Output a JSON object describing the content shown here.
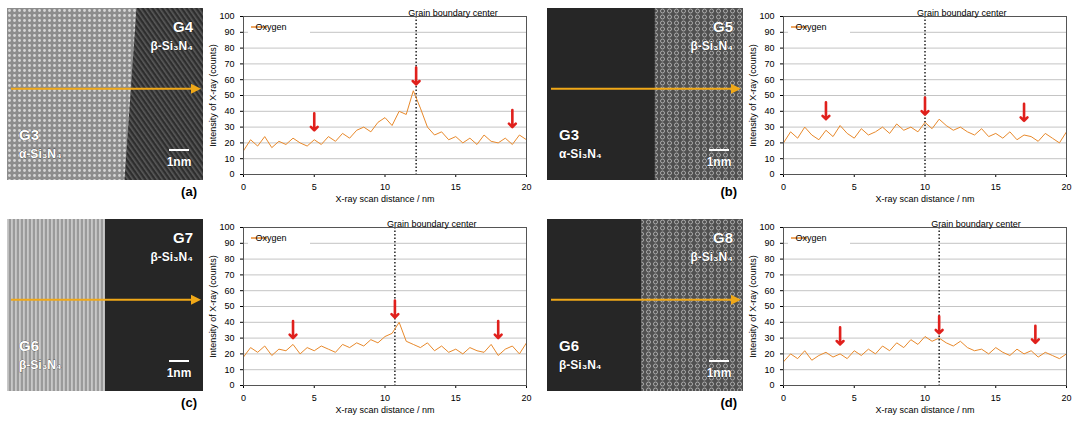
{
  "chart_data": [
    {
      "panel": "(a)",
      "type": "line",
      "image": {
        "left_grain": "G3",
        "left_phase": "α-Si₃N₄",
        "right_grain": "G4",
        "right_phase": "β-Si₃N₄",
        "scale_bar": "1nm"
      },
      "x_label": "X-ray scan distance / nm",
      "y_label": "Intensity of X-ray (counts)",
      "xlim": [
        0,
        20
      ],
      "xticks": [
        0,
        5,
        10,
        15,
        20
      ],
      "ylim": [
        0,
        100
      ],
      "yticks": [
        0,
        10,
        20,
        30,
        40,
        50,
        60,
        70,
        80,
        90,
        100
      ],
      "grid": true,
      "legend": "top-left",
      "boundary_center": 12.2,
      "boundary_label": "Grain boundary center",
      "arrows": [
        {
          "x": 5,
          "y": 28
        },
        {
          "x": 12.2,
          "y": 57
        },
        {
          "x": 19,
          "y": 30
        }
      ],
      "x": [
        0,
        0.5,
        1,
        1.5,
        2,
        2.5,
        3,
        3.5,
        4,
        4.5,
        5,
        5.5,
        6,
        6.5,
        7,
        7.5,
        8,
        8.5,
        9,
        9.5,
        10,
        10.5,
        11,
        11.5,
        12,
        12.5,
        13,
        13.5,
        14,
        14.5,
        15,
        15.5,
        16,
        16.5,
        17,
        17.5,
        18,
        18.5,
        19,
        19.5,
        20
      ],
      "series": [
        {
          "name": "Oxygen",
          "color": "#e8892b",
          "values": [
            15,
            22,
            18,
            24,
            17,
            21,
            19,
            23,
            20,
            18,
            22,
            19,
            24,
            21,
            26,
            23,
            28,
            30,
            27,
            33,
            36,
            31,
            40,
            38,
            53,
            42,
            30,
            25,
            27,
            22,
            24,
            20,
            23,
            19,
            25,
            21,
            20,
            23,
            19,
            25,
            22
          ]
        }
      ]
    },
    {
      "panel": "(b)",
      "type": "line",
      "image": {
        "left_grain": "G3",
        "left_phase": "α-Si₃N₄",
        "right_grain": "G5",
        "right_phase": "β-Si₃N₄",
        "scale_bar": "1nm"
      },
      "x_label": "X-ray scan distance / nm",
      "y_label": "Intensity of X-ray (counts)",
      "xlim": [
        0,
        20
      ],
      "xticks": [
        0,
        5,
        10,
        15,
        20
      ],
      "ylim": [
        0,
        100
      ],
      "yticks": [
        0,
        10,
        20,
        30,
        40,
        50,
        60,
        70,
        80,
        90,
        100
      ],
      "grid": true,
      "legend": "top-left",
      "boundary_center": 10,
      "boundary_label": "Grain boundary center",
      "arrows": [
        {
          "x": 3,
          "y": 35
        },
        {
          "x": 10,
          "y": 38
        },
        {
          "x": 17,
          "y": 34
        }
      ],
      "x": [
        0,
        0.5,
        1,
        1.5,
        2,
        2.5,
        3,
        3.5,
        4,
        4.5,
        5,
        5.5,
        6,
        6.5,
        7,
        7.5,
        8,
        8.5,
        9,
        9.5,
        10,
        10.5,
        11,
        11.5,
        12,
        12.5,
        13,
        13.5,
        14,
        14.5,
        15,
        15.5,
        16,
        16.5,
        17,
        17.5,
        18,
        18.5,
        19,
        19.5,
        20
      ],
      "series": [
        {
          "name": "Oxygen",
          "color": "#e8892b",
          "values": [
            20,
            27,
            23,
            30,
            25,
            22,
            28,
            24,
            31,
            26,
            23,
            29,
            25,
            27,
            30,
            26,
            32,
            28,
            30,
            27,
            33,
            29,
            35,
            31,
            28,
            30,
            27,
            25,
            29,
            24,
            26,
            23,
            27,
            22,
            25,
            24,
            21,
            26,
            23,
            20,
            27
          ]
        }
      ]
    },
    {
      "panel": "(c)",
      "type": "line",
      "image": {
        "left_grain": "G6",
        "left_phase": "β-Si₃N₄",
        "right_grain": "G7",
        "right_phase": "β-Si₃N₄",
        "scale_bar": "1nm"
      },
      "x_label": "X-ray scan distance / nm",
      "y_label": "Intensity of X-ray (counts)",
      "xlim": [
        0,
        20
      ],
      "xticks": [
        0,
        5,
        10,
        15,
        20
      ],
      "ylim": [
        0,
        100
      ],
      "yticks": [
        0,
        10,
        20,
        30,
        40,
        50,
        60,
        70,
        80,
        90,
        100
      ],
      "grid": true,
      "legend": "top-left",
      "boundary_center": 10.7,
      "boundary_label": "Grain boundary center",
      "arrows": [
        {
          "x": 3.5,
          "y": 30
        },
        {
          "x": 10.7,
          "y": 43
        },
        {
          "x": 18,
          "y": 30
        }
      ],
      "x": [
        0,
        0.5,
        1,
        1.5,
        2,
        2.5,
        3,
        3.5,
        4,
        4.5,
        5,
        5.5,
        6,
        6.5,
        7,
        7.5,
        8,
        8.5,
        9,
        9.5,
        10,
        10.5,
        11,
        11.5,
        12,
        12.5,
        13,
        13.5,
        14,
        14.5,
        15,
        15.5,
        16,
        16.5,
        17,
        17.5,
        18,
        18.5,
        19,
        19.5,
        20
      ],
      "series": [
        {
          "name": "Oxygen",
          "color": "#e8892b",
          "values": [
            18,
            24,
            21,
            25,
            19,
            23,
            22,
            26,
            20,
            24,
            22,
            25,
            23,
            21,
            26,
            24,
            27,
            25,
            29,
            27,
            31,
            33,
            40,
            28,
            26,
            24,
            27,
            22,
            25,
            21,
            23,
            20,
            24,
            22,
            21,
            26,
            19,
            23,
            25,
            20,
            27
          ]
        }
      ]
    },
    {
      "panel": "(d)",
      "type": "line",
      "image": {
        "left_grain": "G6",
        "left_phase": "β-Si₃N₄",
        "right_grain": "G8",
        "right_phase": "β-Si₃N₄",
        "scale_bar": "1nm"
      },
      "x_label": "X-ray scan distance / nm",
      "y_label": "Intensity of X-ray (counts)",
      "xlim": [
        0,
        20
      ],
      "xticks": [
        0,
        5,
        10,
        15,
        20
      ],
      "ylim": [
        0,
        100
      ],
      "yticks": [
        0,
        10,
        20,
        30,
        40,
        50,
        60,
        70,
        80,
        90,
        100
      ],
      "grid": true,
      "legend": "top-left",
      "boundary_center": 11,
      "boundary_label": "Grain boundary center",
      "arrows": [
        {
          "x": 4,
          "y": 26
        },
        {
          "x": 11,
          "y": 33
        },
        {
          "x": 17.8,
          "y": 27
        }
      ],
      "x": [
        0,
        0.5,
        1,
        1.5,
        2,
        2.5,
        3,
        3.5,
        4,
        4.5,
        5,
        5.5,
        6,
        6.5,
        7,
        7.5,
        8,
        8.5,
        9,
        9.5,
        10,
        10.5,
        11,
        11.5,
        12,
        12.5,
        13,
        13.5,
        14,
        14.5,
        15,
        15.5,
        16,
        16.5,
        17,
        17.5,
        18,
        18.5,
        19,
        19.5,
        20
      ],
      "series": [
        {
          "name": "Oxygen",
          "color": "#e8892b",
          "values": [
            15,
            20,
            17,
            22,
            16,
            19,
            21,
            18,
            20,
            17,
            22,
            19,
            23,
            20,
            25,
            22,
            27,
            24,
            29,
            26,
            31,
            28,
            30,
            27,
            25,
            28,
            24,
            22,
            23,
            20,
            24,
            21,
            19,
            23,
            20,
            22,
            18,
            21,
            19,
            17,
            20
          ]
        }
      ]
    }
  ]
}
